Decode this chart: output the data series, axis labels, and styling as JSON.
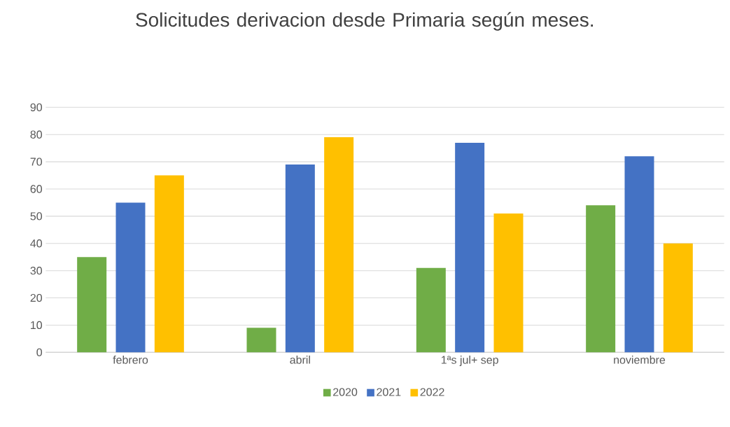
{
  "chart_data": {
    "type": "bar",
    "title": "Solicitudes derivacion desde Primaria según meses.",
    "categories": [
      "febrero",
      "abril",
      "1ªs jul+ sep",
      "noviembre"
    ],
    "series": [
      {
        "name": "2020",
        "color": "#70ad47",
        "values": [
          35,
          9,
          31,
          54
        ]
      },
      {
        "name": "2021",
        "color": "#4472c4",
        "values": [
          55,
          69,
          77,
          72
        ]
      },
      {
        "name": "2022",
        "color": "#ffc000",
        "values": [
          65,
          79,
          51,
          40
        ]
      }
    ],
    "ylim": [
      0,
      90
    ],
    "yticks": [
      0,
      10,
      20,
      30,
      40,
      50,
      60,
      70,
      80,
      90
    ],
    "grid": "y",
    "legend": "bottom"
  }
}
